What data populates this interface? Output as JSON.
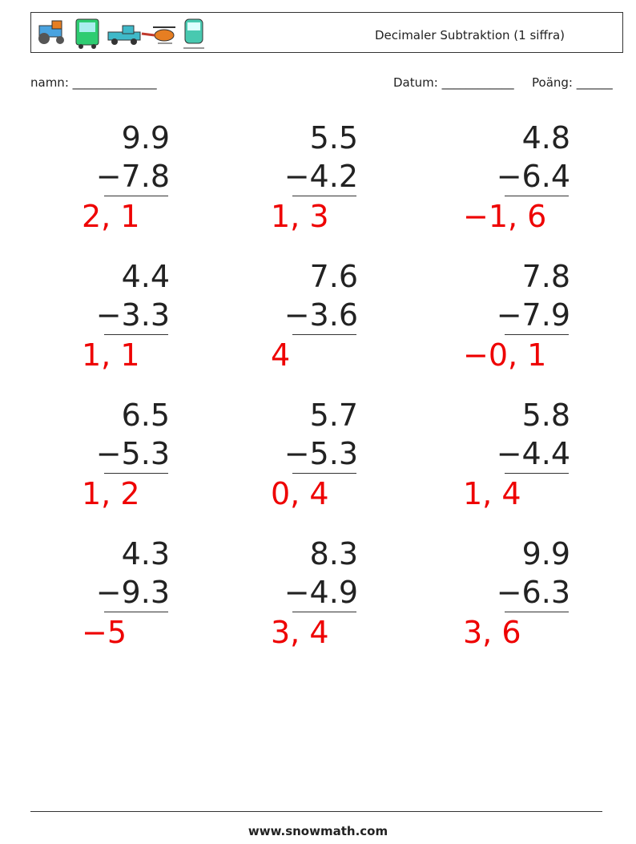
{
  "header": {
    "title": "Decimaler Subtraktion (1 siffra)"
  },
  "fields": {
    "name": "namn: ______________",
    "date": "Datum: ____________",
    "score": "Poäng: ______"
  },
  "problems": [
    {
      "top": "9.9",
      "bottom": "−7.8",
      "answer": "2, 1"
    },
    {
      "top": "5.5",
      "bottom": "−4.2",
      "answer": "1, 3"
    },
    {
      "top": "4.8",
      "bottom": "−6.4",
      "answer": "−1, 6"
    },
    {
      "top": "4.4",
      "bottom": "−3.3",
      "answer": "1, 1"
    },
    {
      "top": "7.6",
      "bottom": "−3.6",
      "answer": "4"
    },
    {
      "top": "7.8",
      "bottom": "−7.9",
      "answer": "−0, 1"
    },
    {
      "top": "6.5",
      "bottom": "−5.3",
      "answer": "1, 2"
    },
    {
      "top": "5.7",
      "bottom": "−5.3",
      "answer": "0, 4"
    },
    {
      "top": "5.8",
      "bottom": "−4.4",
      "answer": "1, 4"
    },
    {
      "top": "4.3",
      "bottom": "−9.3",
      "answer": "−5"
    },
    {
      "top": "8.3",
      "bottom": "−4.9",
      "answer": "3, 4"
    },
    {
      "top": "9.9",
      "bottom": "−6.3",
      "answer": "3, 6"
    }
  ],
  "footer": {
    "url": "www.snowmath.com"
  }
}
